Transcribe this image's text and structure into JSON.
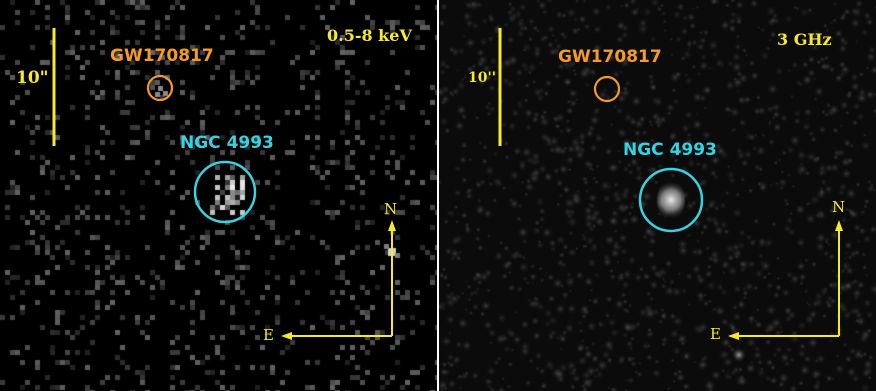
{
  "left_panel": {
    "band": "0.5-8 keV",
    "scale": "10\"",
    "transient": "GW170817",
    "galaxy": "NGC 4993",
    "north": "N",
    "east": "E"
  },
  "right_panel": {
    "band": "3 GHz",
    "scale": "10''",
    "transient": "GW170817",
    "galaxy": "NGC 4993",
    "north": "N",
    "east": "E"
  },
  "colors": {
    "transient_marker": "#f39a2a",
    "galaxy_marker": "#36d3e3",
    "compass_and_scale": "#f6ea2a"
  }
}
